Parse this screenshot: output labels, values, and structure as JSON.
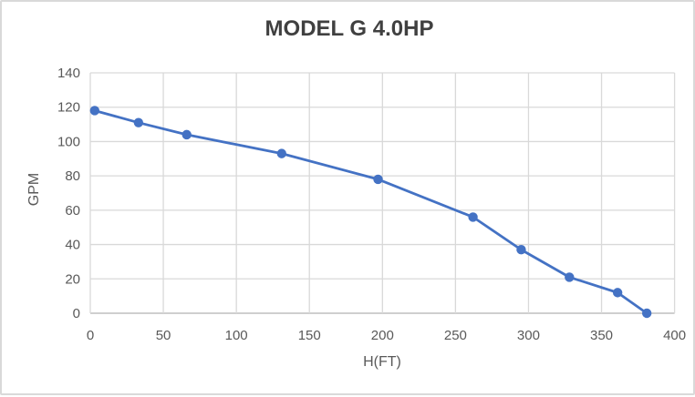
{
  "chart_data": {
    "type": "line",
    "title": "MODEL G 4.0HP",
    "xlabel": "H(FT)",
    "ylabel": "GPM",
    "x": [
      3,
      33,
      66,
      131,
      197,
      262,
      295,
      328,
      361,
      381
    ],
    "y": [
      118,
      111,
      104,
      93,
      78,
      56,
      37,
      21,
      12,
      0
    ],
    "xlim": [
      0,
      400
    ],
    "ylim": [
      0,
      140
    ],
    "xtick_step": 50,
    "ytick_step": 20,
    "grid": true,
    "legend": false,
    "x_tick_labels": [
      "0",
      "50",
      "100",
      "150",
      "200",
      "250",
      "300",
      "350",
      "400"
    ],
    "y_tick_labels": [
      "0",
      "20",
      "40",
      "60",
      "80",
      "100",
      "120",
      "140"
    ],
    "colors": {
      "series": "#4472c4",
      "gridline": "#d9d9d9",
      "axis_line": "#bfbfbf",
      "tick_text": "#595959",
      "title_text": "#404040",
      "frame_border": "#d9d9d9",
      "background": "#ffffff"
    }
  }
}
